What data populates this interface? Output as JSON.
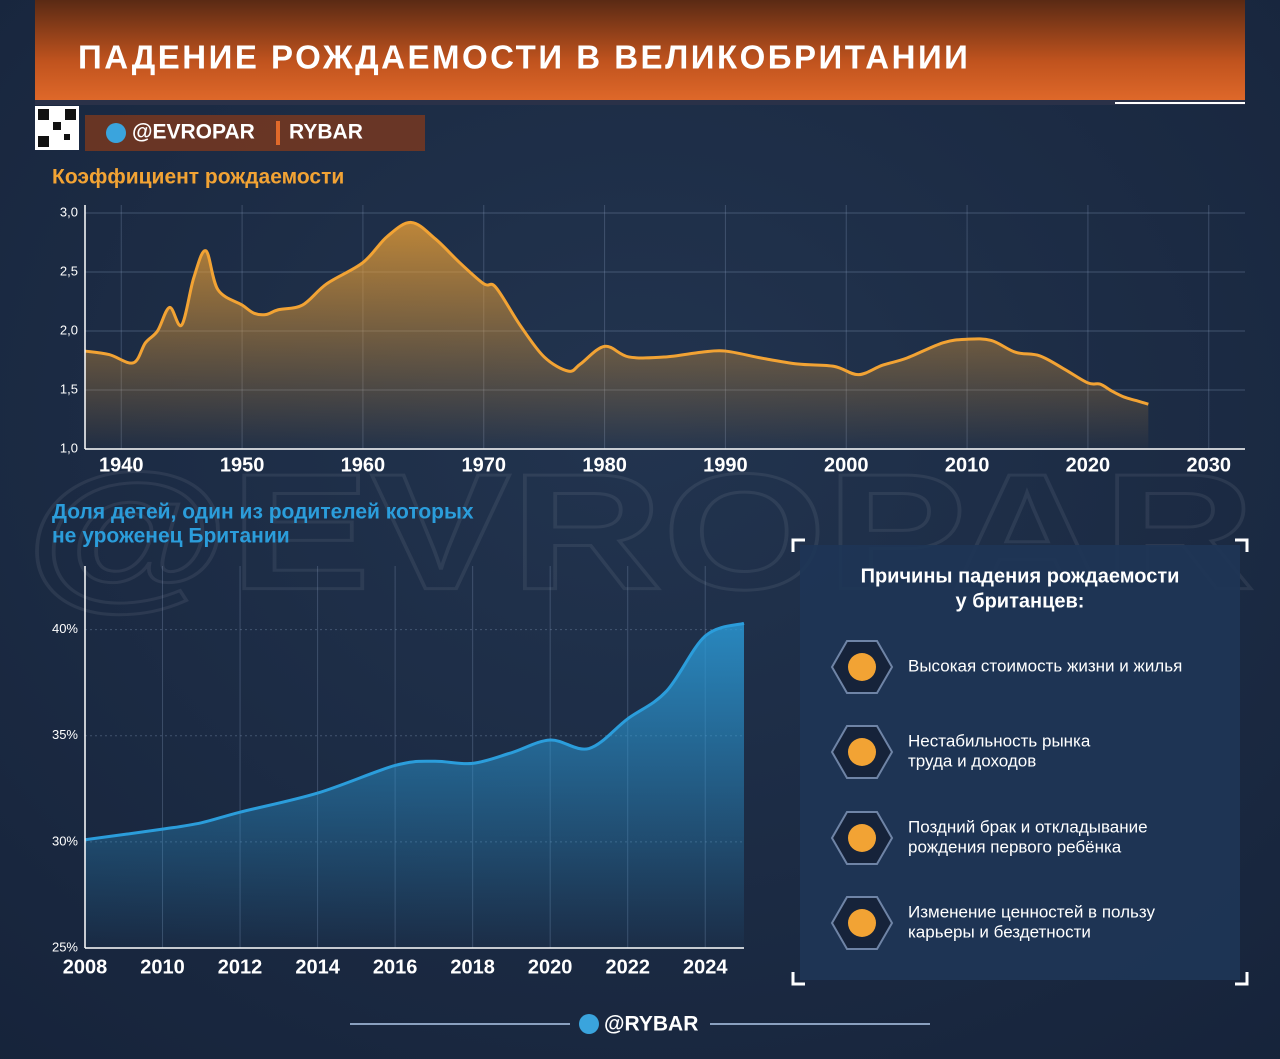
{
  "header": {
    "title": "ПАДЕНИЕ РОЖДАЕМОСТИ В ВЕЛИКОБРИТАНИИ",
    "handle": "@EVROPAR",
    "brand": "RYBAR"
  },
  "watermark": "@EVROPAR",
  "chart_data": [
    {
      "type": "line",
      "title": [
        "Коэффициент рождаемости"
      ],
      "color": "#f2a334",
      "grid": true,
      "x": [
        1937,
        1939,
        1941,
        1942,
        1943,
        1944,
        1945,
        1946,
        1947,
        1948,
        1950,
        1951,
        1952,
        1953,
        1955,
        1957,
        1960,
        1962,
        1964,
        1966,
        1968,
        1970,
        1971,
        1973,
        1975,
        1977,
        1978,
        1980,
        1982,
        1985,
        1988,
        1990,
        1993,
        1996,
        1999,
        2001,
        2003,
        2005,
        2008,
        2010,
        2012,
        2014,
        2016,
        2018,
        2020,
        2021,
        2022,
        2023,
        2024,
        2025
      ],
      "values": [
        1.83,
        1.8,
        1.73,
        1.9,
        2.0,
        2.2,
        2.05,
        2.45,
        2.68,
        2.35,
        2.22,
        2.15,
        2.14,
        2.18,
        2.22,
        2.4,
        2.58,
        2.8,
        2.92,
        2.78,
        2.58,
        2.4,
        2.37,
        2.05,
        1.78,
        1.66,
        1.72,
        1.87,
        1.78,
        1.78,
        1.82,
        1.83,
        1.77,
        1.72,
        1.7,
        1.63,
        1.71,
        1.77,
        1.9,
        1.93,
        1.92,
        1.82,
        1.79,
        1.68,
        1.56,
        1.55,
        1.49,
        1.44,
        1.41,
        1.38
      ],
      "xlim": [
        1937,
        2033
      ],
      "xticks": [
        1940,
        1950,
        1960,
        1970,
        1980,
        1990,
        2000,
        2010,
        2020,
        2030
      ],
      "ylim": [
        1,
        3
      ],
      "yticks": [
        {
          "value": 1,
          "label": "1,0"
        },
        {
          "value": 1.5,
          "label": "1,5"
        },
        {
          "value": 2,
          "label": "2,0"
        },
        {
          "value": 2.5,
          "label": "2,5"
        },
        {
          "value": 3,
          "label": "3,0"
        }
      ]
    },
    {
      "type": "area",
      "title": [
        "Доля детей, один из родителей которых",
        "не уроженец Британии"
      ],
      "color": "#2b9ddb",
      "grid": true,
      "x": [
        2008,
        2010,
        2011,
        2012,
        2014,
        2016,
        2017,
        2018,
        2019,
        2020,
        2021,
        2022,
        2023,
        2024,
        2025
      ],
      "values": [
        30.1,
        30.6,
        30.9,
        31.4,
        32.3,
        33.6,
        33.8,
        33.7,
        34.2,
        34.8,
        34.4,
        35.8,
        37.1,
        39.7,
        40.3
      ],
      "xlim": [
        2008,
        2025
      ],
      "xticks": [
        2008,
        2010,
        2012,
        2014,
        2016,
        2018,
        2020,
        2022,
        2024
      ],
      "ylim": [
        25,
        43
      ],
      "yticks": [
        {
          "value": 25,
          "label": "25%"
        },
        {
          "value": 30,
          "label": "30%"
        },
        {
          "value": 35,
          "label": "35%"
        },
        {
          "value": 40,
          "label": "40%"
        }
      ]
    }
  ],
  "panel": {
    "title": [
      "Причины падения рождаемости",
      "у британцев:"
    ],
    "items": [
      [
        "Высокая стоимость жизни и жилья"
      ],
      [
        "Нестабильность рынка",
        "труда и доходов"
      ],
      [
        "Поздний брак и откладывание",
        "рождения первого ребёнка"
      ],
      [
        "Изменение ценностей в пользу",
        "карьеры и бездетности"
      ]
    ]
  },
  "footer": "@RYBAR"
}
